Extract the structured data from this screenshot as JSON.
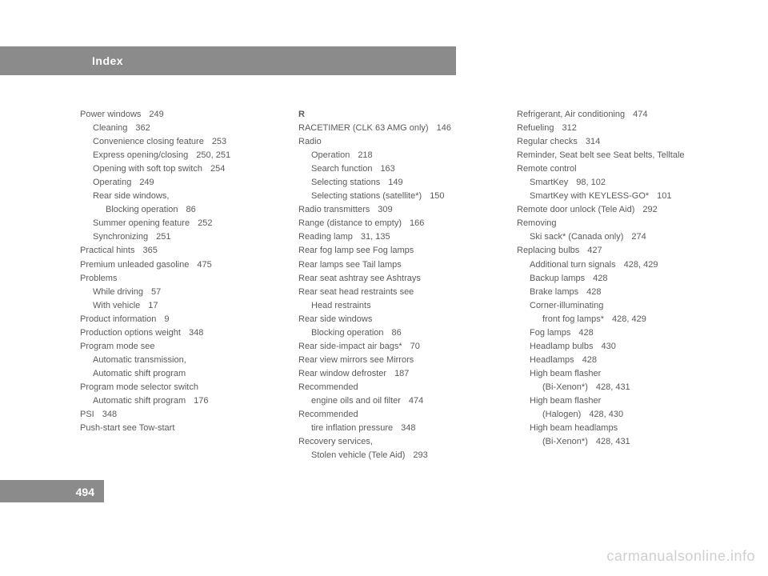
{
  "header": {
    "title": "Index"
  },
  "pageNumber": "494",
  "watermark": "carmanualsonline.info",
  "col1": [
    {
      "t": "Power windows",
      "p": "249",
      "lvl": 0
    },
    {
      "t": "Cleaning",
      "p": "362",
      "lvl": 1
    },
    {
      "t": "Convenience closing feature",
      "p": "253",
      "lvl": 1
    },
    {
      "t": "Express opening/closing",
      "p": "250, 251",
      "lvl": 1
    },
    {
      "t": "Opening with soft top switch",
      "p": "254",
      "lvl": 1
    },
    {
      "t": "Operating",
      "p": "249",
      "lvl": 1
    },
    {
      "t": "Rear side windows,",
      "p": "",
      "lvl": 1
    },
    {
      "t": "Blocking operation",
      "p": "86",
      "lvl": 2
    },
    {
      "t": "Summer opening feature",
      "p": "252",
      "lvl": 1
    },
    {
      "t": "Synchronizing",
      "p": "251",
      "lvl": 1
    },
    {
      "t": "Practical hints",
      "p": "365",
      "lvl": 0
    },
    {
      "t": "Premium unleaded gasoline",
      "p": "475",
      "lvl": 0
    },
    {
      "t": "Problems",
      "p": "",
      "lvl": 0
    },
    {
      "t": "While driving",
      "p": "57",
      "lvl": 1
    },
    {
      "t": "With vehicle",
      "p": "17",
      "lvl": 1
    },
    {
      "t": "Product information",
      "p": "9",
      "lvl": 0
    },
    {
      "t": "Production options weight",
      "p": "348",
      "lvl": 0
    },
    {
      "t": "Program mode see",
      "p": "",
      "lvl": 0
    },
    {
      "t": "Automatic transmission,",
      "p": "",
      "lvl": 1
    },
    {
      "t": "Automatic shift program",
      "p": "",
      "lvl": 1
    },
    {
      "t": "Program mode selector switch",
      "p": "",
      "lvl": 0
    },
    {
      "t": "Automatic shift program",
      "p": "176",
      "lvl": 1
    },
    {
      "t": "PSI",
      "p": "348",
      "lvl": 0
    },
    {
      "t": "Push-start see Tow-start",
      "p": "",
      "lvl": 0
    }
  ],
  "col2": [
    {
      "t": "R",
      "p": "",
      "lvl": 0,
      "bold": true
    },
    {
      "t": "RACETIMER (CLK 63 AMG only)",
      "p": "146",
      "lvl": 0
    },
    {
      "t": "Radio",
      "p": "",
      "lvl": 0
    },
    {
      "t": "Operation",
      "p": "218",
      "lvl": 1
    },
    {
      "t": "Search function",
      "p": "163",
      "lvl": 1
    },
    {
      "t": "Selecting stations",
      "p": "149",
      "lvl": 1
    },
    {
      "t": "Selecting stations (satellite*)",
      "p": "150",
      "lvl": 1
    },
    {
      "t": "Radio transmitters",
      "p": "309",
      "lvl": 0
    },
    {
      "t": "Range (distance to empty)",
      "p": "166",
      "lvl": 0
    },
    {
      "t": "Reading lamp",
      "p": "31, 135",
      "lvl": 0
    },
    {
      "t": "Rear fog lamp see Fog lamps",
      "p": "",
      "lvl": 0
    },
    {
      "t": "Rear lamps see Tail lamps",
      "p": "",
      "lvl": 0
    },
    {
      "t": "Rear seat ashtray see Ashtrays",
      "p": "",
      "lvl": 0
    },
    {
      "t": "Rear seat head restraints see",
      "p": "",
      "lvl": 0
    },
    {
      "t": "Head restraints",
      "p": "",
      "lvl": 1
    },
    {
      "t": "Rear side windows",
      "p": "",
      "lvl": 0
    },
    {
      "t": "Blocking operation",
      "p": "86",
      "lvl": 1
    },
    {
      "t": "Rear side-impact air bags*",
      "p": "70",
      "lvl": 0
    },
    {
      "t": "Rear view mirrors see Mirrors",
      "p": "",
      "lvl": 0
    },
    {
      "t": "Rear window defroster",
      "p": "187",
      "lvl": 0
    },
    {
      "t": "Recommended",
      "p": "",
      "lvl": 0
    },
    {
      "t": "engine oils and oil filter",
      "p": "474",
      "lvl": 1
    },
    {
      "t": "Recommended",
      "p": "",
      "lvl": 0
    },
    {
      "t": "tire inflation pressure",
      "p": "348",
      "lvl": 1
    },
    {
      "t": "Recovery services,",
      "p": "",
      "lvl": 0
    },
    {
      "t": "Stolen vehicle (Tele Aid)",
      "p": "293",
      "lvl": 1
    }
  ],
  "col3": [
    {
      "t": "Refrigerant, Air conditioning",
      "p": "474",
      "lvl": 0
    },
    {
      "t": "Refueling",
      "p": "312",
      "lvl": 0
    },
    {
      "t": "Regular checks",
      "p": "314",
      "lvl": 0
    },
    {
      "t": "Reminder, Seat belt see Seat belts, Telltale",
      "p": "",
      "lvl": 0
    },
    {
      "t": "Remote control",
      "p": "",
      "lvl": 0
    },
    {
      "t": "SmartKey",
      "p": "98, 102",
      "lvl": 1
    },
    {
      "t": "SmartKey with KEYLESS-GO*",
      "p": "101",
      "lvl": 1
    },
    {
      "t": "Remote door unlock (Tele Aid)",
      "p": "292",
      "lvl": 0
    },
    {
      "t": "Removing",
      "p": "",
      "lvl": 0
    },
    {
      "t": "Ski sack* (Canada only)",
      "p": "274",
      "lvl": 1
    },
    {
      "t": "Replacing bulbs",
      "p": "427",
      "lvl": 0
    },
    {
      "t": "Additional turn signals",
      "p": "428, 429",
      "lvl": 1
    },
    {
      "t": "Backup lamps",
      "p": "428",
      "lvl": 1
    },
    {
      "t": "Brake lamps",
      "p": "428",
      "lvl": 1
    },
    {
      "t": "Corner-illuminating",
      "p": "",
      "lvl": 1
    },
    {
      "t": "front fog lamps*",
      "p": "428, 429",
      "lvl": 2
    },
    {
      "t": "Fog lamps",
      "p": "428",
      "lvl": 1
    },
    {
      "t": "Headlamp bulbs",
      "p": "430",
      "lvl": 1
    },
    {
      "t": "Headlamps",
      "p": "428",
      "lvl": 1
    },
    {
      "t": "High beam flasher",
      "p": "",
      "lvl": 1
    },
    {
      "t": "(Bi-Xenon*)",
      "p": "428, 431",
      "lvl": 2
    },
    {
      "t": "High beam flasher",
      "p": "",
      "lvl": 1
    },
    {
      "t": "(Halogen)",
      "p": "428, 430",
      "lvl": 2
    },
    {
      "t": "High beam headlamps",
      "p": "",
      "lvl": 1
    },
    {
      "t": "(Bi-Xenon*)",
      "p": "428, 431",
      "lvl": 2
    }
  ]
}
